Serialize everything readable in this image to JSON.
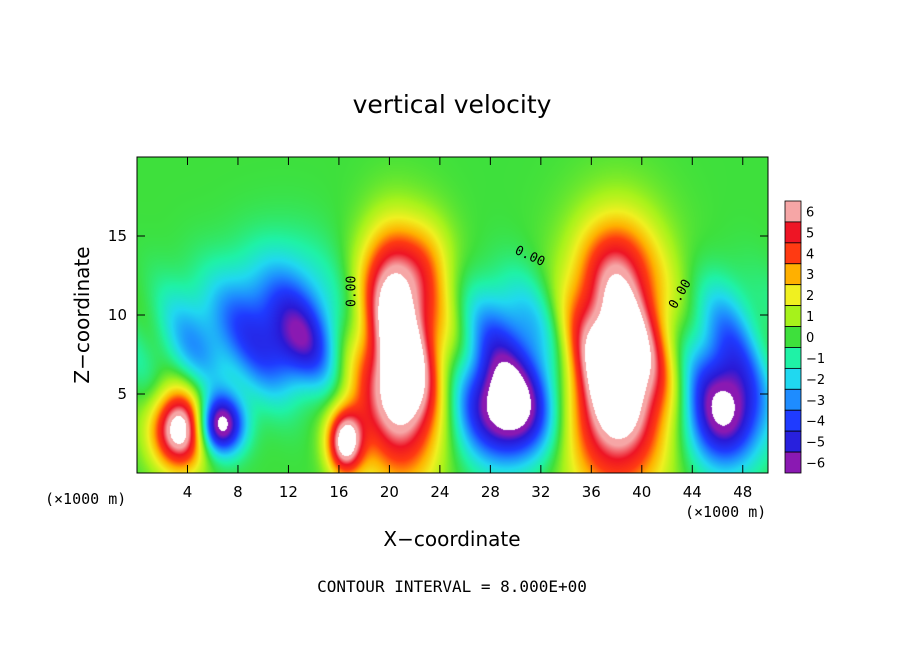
{
  "chart_data": {
    "type": "heatmap",
    "title": "vertical velocity",
    "xlabel": "X−coordinate",
    "ylabel": "Z−coordinate",
    "x_unit": "(×1000 m)",
    "y_unit": "(×1000 m)",
    "footer": "CONTOUR INTERVAL = 8.000E+00",
    "xlim": [
      0,
      50
    ],
    "ylim": [
      0,
      20
    ],
    "xticks": [
      {
        "value": 4,
        "label": "4"
      },
      {
        "value": 8,
        "label": "8"
      },
      {
        "value": 12,
        "label": "12"
      },
      {
        "value": 16,
        "label": "16"
      },
      {
        "value": 20,
        "label": "20"
      },
      {
        "value": 24,
        "label": "24"
      },
      {
        "value": 28,
        "label": "28"
      },
      {
        "value": 32,
        "label": "32"
      },
      {
        "value": 36,
        "label": "36"
      },
      {
        "value": 40,
        "label": "40"
      },
      {
        "value": 44,
        "label": "44"
      },
      {
        "value": 48,
        "label": "48"
      }
    ],
    "yticks": [
      {
        "value": 5,
        "label": "5"
      },
      {
        "value": 10,
        "label": "10"
      },
      {
        "value": 15,
        "label": "15"
      }
    ],
    "contour_labels": [
      {
        "x": 17.3,
        "y": 11.5,
        "text": "0.00",
        "rotate": -90
      },
      {
        "x": 31.0,
        "y": 13.5,
        "text": "0.00",
        "rotate": 25
      },
      {
        "x": 43.3,
        "y": 11.2,
        "text": "0.00",
        "rotate": -60
      }
    ],
    "colorbar": {
      "min": -6,
      "max": 6,
      "ticks": [
        "6",
        "5",
        "4",
        "3",
        "2",
        "1",
        "0",
        "−1",
        "−2",
        "−3",
        "−4",
        "−5",
        "−6"
      ],
      "colors": [
        {
          "v": -6,
          "c": "#8a19b2"
        },
        {
          "v": -5.2,
          "c": "#2a1ad6"
        },
        {
          "v": -4,
          "c": "#1f3bff"
        },
        {
          "v": -3,
          "c": "#1e8cff"
        },
        {
          "v": -2,
          "c": "#20d8f0"
        },
        {
          "v": -1,
          "c": "#1ff2a6"
        },
        {
          "v": 0,
          "c": "#3ee03c"
        },
        {
          "v": 1,
          "c": "#a6f21b"
        },
        {
          "v": 2,
          "c": "#f0f020"
        },
        {
          "v": 3,
          "c": "#ffb000"
        },
        {
          "v": 4,
          "c": "#ff3a12"
        },
        {
          "v": 5,
          "c": "#ee1525"
        },
        {
          "v": 6,
          "c": "#f6a6a6"
        }
      ]
    },
    "features": [
      {
        "x": 3.5,
        "z": 2.8,
        "sx": 1.6,
        "sz": 1.8,
        "amp": 8
      },
      {
        "x": 6.5,
        "z": 3.0,
        "sx": 1.3,
        "sz": 1.3,
        "amp": -7.5
      },
      {
        "x": 5.5,
        "z": 8.5,
        "sx": 3.0,
        "sz": 2.8,
        "amp": -2.5
      },
      {
        "x": 11.5,
        "z": 10.0,
        "sx": 3.0,
        "sz": 3.0,
        "amp": -3.5
      },
      {
        "x": 13.0,
        "z": 8.0,
        "sx": 2.2,
        "sz": 2.0,
        "amp": -3.0
      },
      {
        "x": 16.5,
        "z": 2.0,
        "sx": 1.0,
        "sz": 1.5,
        "amp": 7
      },
      {
        "x": 21.0,
        "z": 6.5,
        "sx": 2.4,
        "sz": 4.5,
        "amp": 9
      },
      {
        "x": 20.0,
        "z": 12.5,
        "sx": 1.6,
        "sz": 2.5,
        "amp": 3
      },
      {
        "x": 23.0,
        "z": 13.5,
        "sx": 1.5,
        "sz": 2.0,
        "amp": 1.5
      },
      {
        "x": 29.5,
        "z": 4.2,
        "sx": 2.8,
        "sz": 2.4,
        "amp": -8
      },
      {
        "x": 29.5,
        "z": 9.0,
        "sx": 3.0,
        "sz": 2.5,
        "amp": -3.0
      },
      {
        "x": 38.0,
        "z": 6.5,
        "sx": 3.0,
        "sz": 5.0,
        "amp": 9.5
      },
      {
        "x": 38.0,
        "z": 13.5,
        "sx": 2.0,
        "sz": 2.2,
        "amp": 2
      },
      {
        "x": 46.5,
        "z": 4.0,
        "sx": 2.2,
        "sz": 2.5,
        "amp": -7
      },
      {
        "x": 46.0,
        "z": 9.0,
        "sx": 2.5,
        "sz": 2.5,
        "amp": -2.5
      }
    ]
  }
}
